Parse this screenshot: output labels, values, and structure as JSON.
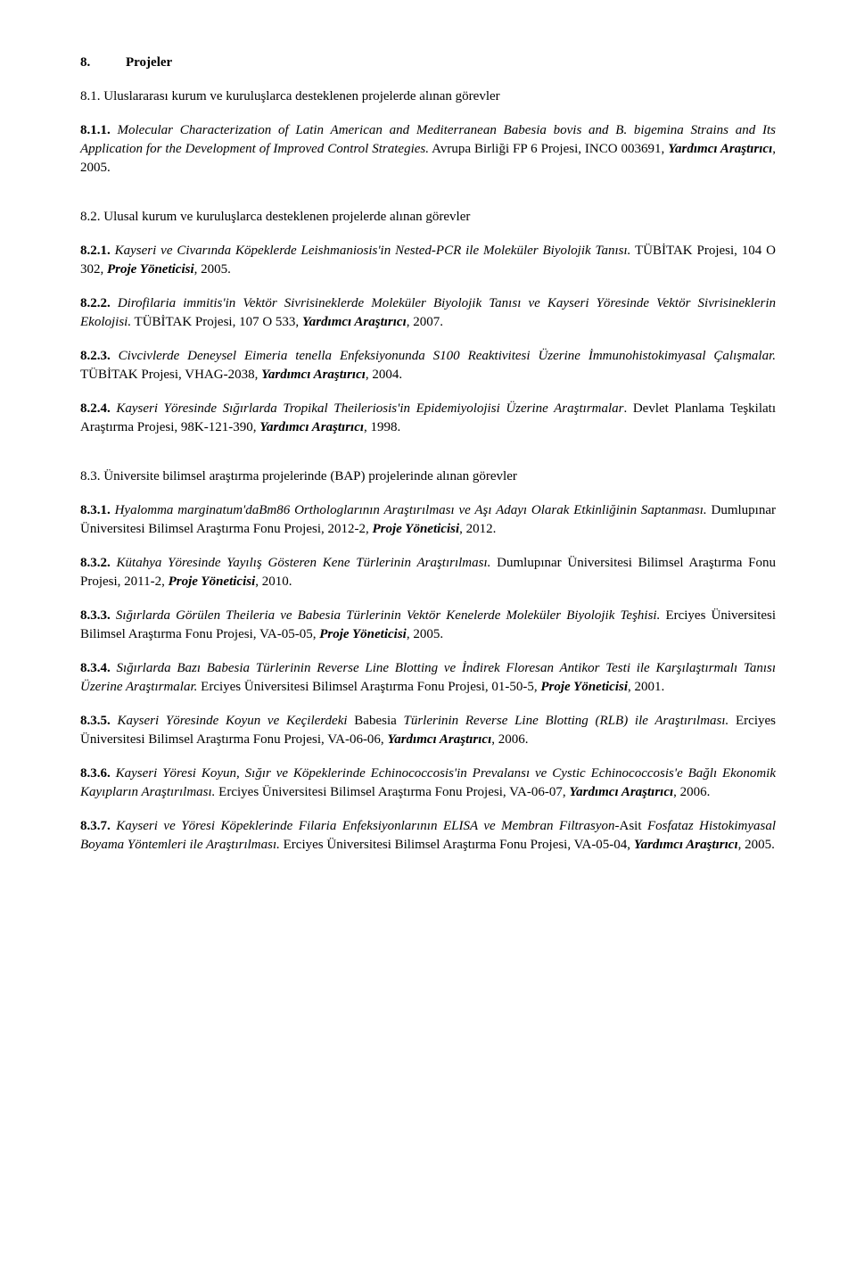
{
  "fonts": {
    "body_family": "Times New Roman",
    "body_size_pt": 12,
    "line_height": 1.4
  },
  "colors": {
    "text": "#000000",
    "background": "#ffffff"
  },
  "heading_8": "8.",
  "heading_8_label": "Projeler",
  "s81_label": "8.1. Uluslararası kurum ve kuruluşlarca desteklenen projelerde alınan görevler",
  "p811_num": "8.1.1.",
  "p811_it": "Molecular Characterization of Latin American and Mediterranean Babesia bovis and B. bigemina Strains and Its Application for the Development of Improved Control Strategies.",
  "p811_tail1": " Avrupa Birliği FP 6 Projesi, INCO 003691, ",
  "p811_bi": "Yardımcı Araştırıcı",
  "p811_tail2": ", 2005.",
  "s82_label": "8.2. Ulusal kurum ve kuruluşlarca desteklenen projelerde alınan görevler",
  "p821_num": "8.2.1.",
  "p821_it": "Kayseri ve Civarında Köpeklerde Leishmaniosis'in Nested-PCR ile Moleküler Biyolojik Tanısı.",
  "p821_tail1": " TÜBİTAK Projesi, 104 O 302, ",
  "p821_bi": "Proje Yöneticisi",
  "p821_tail2": ", 2005.",
  "p822_num": "8.2.2.",
  "p822_it": "Dirofilaria immitis'in Vektör Sivrisineklerde Moleküler Biyolojik Tanısı ve Kayseri Yöresinde Vektör Sivrisineklerin Ekolojisi.",
  "p822_tail1": " TÜBİTAK Projesi, 107 O 533, ",
  "p822_bi": "Yardımcı Araştırıcı",
  "p822_tail2": ", 2007.",
  "p823_num": "8.2.3.",
  "p823_it": "Civcivlerde Deneysel Eimeria tenella Enfeksiyonunda S100 Reaktivitesi Üzerine İmmunohistokimyasal Çalışmalar.",
  "p823_tail1": " TÜBİTAK Projesi, VHAG-2038, ",
  "p823_bi": "Yardımcı Araştırıcı",
  "p823_tail2": ", 2004.",
  "p824_num": "8.2.4.",
  "p824_it": "Kayseri Yöresinde Sığırlarda Tropikal Theileriosis'in Epidemiyolojisi Üzerine Araştırmalar",
  "p824_tail1": ". Devlet Planlama Teşkilatı Araştırma Projesi, 98K-121-390, ",
  "p824_bi": "Yardımcı Araştırıcı",
  "p824_tail2": ", 1998.",
  "s83_label": "8.3. Üniversite bilimsel araştırma projelerinde (BAP) projelerinde alınan görevler",
  "p831_num": "8.3.1.",
  "p831_it": "Hyalomma marginatum'daBm86 Orthologlarının Araştırılması ve Aşı Adayı Olarak Etkinliğinin Saptanması.",
  "p831_tail1": " Dumlupınar Üniversitesi Bilimsel Araştırma Fonu Projesi, 2012-2, ",
  "p831_bi": "Proje Yöneticisi",
  "p831_tail2": ", 2012.",
  "p832_num": "8.3.2.",
  "p832_it": "Kütahya Yöresinde Yayılış Gösteren Kene Türlerinin Araştırılması.",
  "p832_tail1": " Dumlupınar Üniversitesi Bilimsel Araştırma Fonu Projesi, 2011-2, ",
  "p832_bi": "Proje Yöneticisi",
  "p832_tail2": ", 2010.",
  "p833_num": "8.3.3.",
  "p833_it": "Sığırlarda Görülen Theileria ve Babesia Türlerinin Vektör Kenelerde Moleküler Biyolojik Teşhisi.",
  "p833_tail1": " Erciyes Üniversitesi Bilimsel Araştırma Fonu Projesi, VA-05-05, ",
  "p833_bi": "Proje Yöneticisi",
  "p833_tail2": ", 2005.",
  "p834_num": "8.3.4.",
  "p834_it": "Sığırlarda Bazı Babesia Türlerinin Reverse Line Blotting ve İndirek Floresan Antikor Testi ile Karşılaştırmalı Tanısı Üzerine Araştırmalar.",
  "p834_tail1": " Erciyes Üniversitesi Bilimsel Araştırma Fonu Projesi, 01-50-5, ",
  "p834_bi": "Proje Yöneticisi",
  "p834_tail2": ", 2001.",
  "p835_num": "8.3.5.",
  "p835_it1": "Kayseri Yöresinde Koyun ve Keçilerdeki ",
  "p835_plain": "Babesia",
  "p835_it2": " Türlerinin Reverse Line Blotting (RLB) ile Araştırılması.",
  "p835_tail1": " Erciyes Üniversitesi Bilimsel Araştırma Fonu Projesi, VA-06-06, ",
  "p835_bi": "Yardımcı Araştırıcı",
  "p835_tail2": ", 2006.",
  "p836_num": "8.3.6.",
  "p836_it": "Kayseri Yöresi Koyun, Sığır ve Köpeklerinde Echinococcosis'in Prevalansı ve Cystic Echinococcosis'e Bağlı Ekonomik Kayıpların Araştırılması.",
  "p836_tail1": " Erciyes Üniversitesi Bilimsel Araştırma Fonu Projesi, VA-06-07, ",
  "p836_bi": "Yardımcı Araştırıcı",
  "p836_tail2": ", 2006.",
  "p837_num": "8.3.7.",
  "p837_it": "Kayseri ve Yöresi Köpeklerinde Filaria Enfeksiyonlarının ELISA ve Membran Filtrasyon-",
  "p837_plain": "Asit",
  "p837_it2": " Fosfataz Histokimyasal Boyama Yöntemleri ile Araştırılması.",
  "p837_tail1": " Erciyes Üniversitesi Bilimsel Araştırma Fonu Projesi, VA-05-04, ",
  "p837_bi": "Yardımcı Araştırıcı",
  "p837_tail2": ", 2005."
}
